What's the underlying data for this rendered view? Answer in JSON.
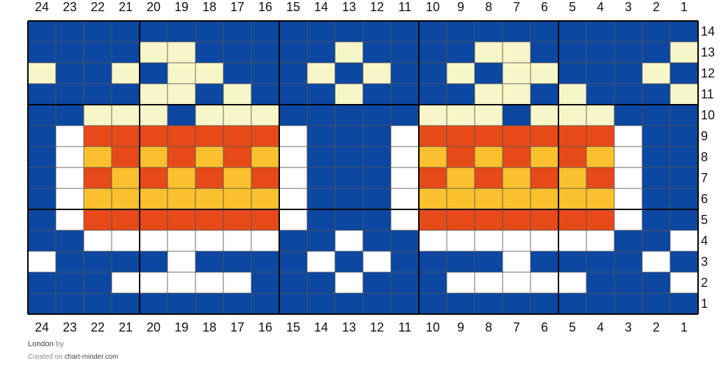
{
  "chart": {
    "name": "London",
    "by_text": "by",
    "created_on_text": "Created on",
    "site": "chart-minder.com",
    "columns": 24,
    "rows": 14,
    "column_labels": [
      "24",
      "23",
      "22",
      "21",
      "20",
      "19",
      "18",
      "17",
      "16",
      "15",
      "14",
      "13",
      "12",
      "11",
      "10",
      "9",
      "8",
      "7",
      "6",
      "5",
      "4",
      "3",
      "2",
      "1"
    ],
    "row_labels": [
      "14",
      "13",
      "12",
      "11",
      "10",
      "9",
      "8",
      "7",
      "6",
      "5",
      "4",
      "3",
      "2",
      "1"
    ],
    "palette": {
      "B": "#0c47a1",
      "C": "#f7f6c8",
      "W": "#ffffff",
      "R": "#e64a19",
      "Y": "#fbc02d"
    },
    "grid": [
      "BBBBBBBBBBBBBBBBBBBBBBBB",
      "BBBBCCBBBBBCBBBBCCBBBBBC",
      "CBBCBCCBBBCBCBBCBCCBBBCB",
      "BBBBCCBCBBBCBBBBCCBCBBBC",
      "BBCCCBCCCBBBBBCCCBCCCBBB",
      "BWRRRRRRRWBBBWRRRRRRRWBB",
      "BWYRYRYRYWBBBWYRYRYRYWBB",
      "BWRYRYRYRWBBBWRYRYRYRWBB",
      "BWYYYYYYYWBBBWYYYYYYYWBB",
      "BWRRRRRRRWBBBWRRRRRRRWBB",
      "BBWWWWWWWBBWBBWWWWWWWBBW",
      "WBBBBWBBBBWBWBBBBWBBBBWB",
      "BBBWWWWWBBBWBBBWWWWWBBBW",
      "BBBBBBBBBBBBBBBBBBBBBBBB"
    ]
  }
}
